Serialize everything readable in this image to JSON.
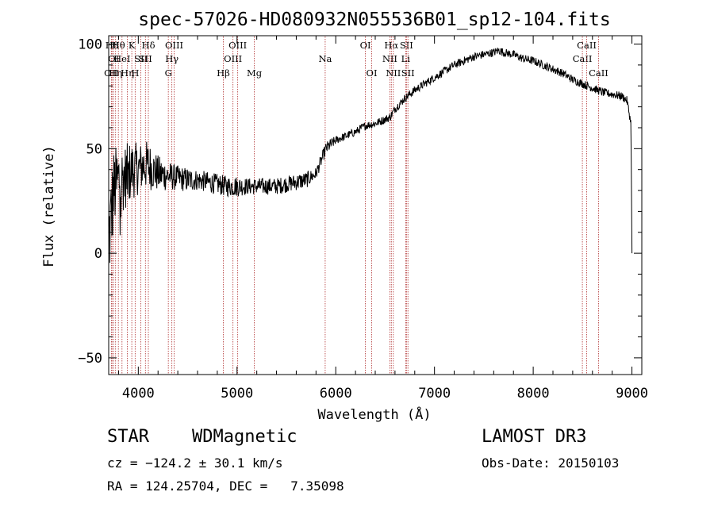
{
  "chart_data": {
    "type": "line",
    "title": "spec-57026-HD080932N055536B01_sp12-104.fits",
    "xlabel": "Wavelength (Å)",
    "ylabel": "Flux (relative)",
    "xlim": [
      3700,
      9100
    ],
    "ylim": [
      -58,
      104
    ],
    "xticks": [
      {
        "value": 4000,
        "label": "4000"
      },
      {
        "value": 5000,
        "label": "5000"
      },
      {
        "value": 6000,
        "label": "6000"
      },
      {
        "value": 7000,
        "label": "7000"
      },
      {
        "value": 8000,
        "label": "8000"
      },
      {
        "value": 9000,
        "label": "9000"
      }
    ],
    "yticks": [
      {
        "value": -50,
        "label": "−50"
      },
      {
        "value": 0,
        "label": "0"
      },
      {
        "value": 50,
        "label": "50"
      },
      {
        "value": 100,
        "label": "100"
      }
    ],
    "grid": false,
    "line_color": "#000000",
    "marker_color": "#b03030",
    "spectrum": {
      "x": [
        3700,
        3750,
        3800,
        3850,
        3900,
        3950,
        4000,
        4050,
        4100,
        4150,
        4200,
        4300,
        4400,
        4500,
        4600,
        4700,
        4800,
        4900,
        5000,
        5100,
        5200,
        5300,
        5400,
        5500,
        5600,
        5700,
        5800,
        5850,
        5900,
        5950,
        6000,
        6100,
        6200,
        6300,
        6400,
        6500,
        6550,
        6600,
        6700,
        6800,
        6900,
        7000,
        7100,
        7200,
        7300,
        7400,
        7500,
        7600,
        7650,
        7700,
        7800,
        7900,
        8000,
        8100,
        8200,
        8300,
        8400,
        8500,
        8600,
        8700,
        8800,
        8900,
        8950,
        8990,
        9000
      ],
      "y": [
        5,
        30,
        35,
        36,
        38,
        40,
        40,
        42,
        42,
        40,
        38,
        37,
        36,
        35,
        35,
        34,
        33,
        32,
        32,
        32,
        32,
        32,
        32,
        33,
        34,
        35,
        38,
        44,
        50,
        52,
        54,
        56,
        58,
        61,
        62,
        64,
        65,
        69,
        74,
        78,
        81,
        84,
        87,
        90,
        92,
        94,
        95,
        96,
        97,
        96,
        95,
        93,
        92,
        90,
        88,
        86,
        83,
        81,
        79,
        77,
        76,
        75,
        73,
        62,
        0
      ]
    },
    "spike_amplitude": [
      25,
      20,
      18,
      16,
      15,
      14,
      12,
      12,
      12,
      10,
      9,
      7,
      6,
      6,
      5,
      5,
      5,
      5,
      5,
      4,
      4,
      4,
      4,
      4,
      4,
      4,
      3,
      3,
      3,
      3,
      2,
      2,
      2,
      2,
      2,
      2,
      2,
      2,
      2,
      2,
      2,
      2,
      2,
      2,
      2,
      2,
      2,
      2,
      2,
      2,
      2,
      2,
      2,
      2,
      2,
      2,
      2,
      2,
      2,
      2,
      2,
      2,
      2,
      2,
      0
    ],
    "markers": [
      {
        "x": 3727,
        "label": "OII",
        "row": 2
      },
      {
        "x": 3734,
        "label": "Hθ",
        "row": 0
      },
      {
        "x": 3750,
        "label": "OI",
        "row": 1
      },
      {
        "x": 3770,
        "label": "Hη",
        "row": 2
      },
      {
        "x": 3798,
        "label": "Hθ",
        "row": 0
      },
      {
        "x": 3835,
        "label": "HeI",
        "row": 1
      },
      {
        "x": 3889,
        "label": "Hη",
        "row": 2
      },
      {
        "x": 3934,
        "label": "K",
        "row": 0
      },
      {
        "x": 3968,
        "label": "H",
        "row": 2
      },
      {
        "x": 4026,
        "label": "SII",
        "row": 1
      },
      {
        "x": 4072,
        "label": "SII",
        "row": 1
      },
      {
        "x": 4102,
        "label": "Hδ",
        "row": 0
      },
      {
        "x": 4304,
        "label": "G",
        "row": 2
      },
      {
        "x": 4340,
        "label": "Hγ",
        "row": 1
      },
      {
        "x": 4363,
        "label": "OIII",
        "row": 0
      },
      {
        "x": 4861,
        "label": "Hβ",
        "row": 2
      },
      {
        "x": 4959,
        "label": "OIII",
        "row": 1
      },
      {
        "x": 5007,
        "label": "OIII",
        "row": 0
      },
      {
        "x": 5175,
        "label": "Mg",
        "row": 2
      },
      {
        "x": 5893,
        "label": "Na",
        "row": 1
      },
      {
        "x": 6300,
        "label": "OI",
        "row": 0
      },
      {
        "x": 6364,
        "label": "OI",
        "row": 2
      },
      {
        "x": 6548,
        "label": "NII",
        "row": 1
      },
      {
        "x": 6563,
        "label": "Hα",
        "row": 0
      },
      {
        "x": 6583,
        "label": "NII",
        "row": 2
      },
      {
        "x": 6708,
        "label": "Li",
        "row": 1
      },
      {
        "x": 6716,
        "label": "SII",
        "row": 0
      },
      {
        "x": 6731,
        "label": "SII",
        "row": 2
      },
      {
        "x": 8498,
        "label": "CaII",
        "row": 1
      },
      {
        "x": 8542,
        "label": "CaII",
        "row": 0
      },
      {
        "x": 8662,
        "label": "CaII",
        "row": 2
      }
    ]
  },
  "info": {
    "class": "STAR",
    "subclass": "WDMagnetic",
    "survey": "LAMOST DR3",
    "cz": "cz = −124.2 ± 30.1 km/s",
    "obs_date": "Obs-Date: 20150103",
    "radec": "RA = 124.25704, DEC =   7.35098"
  }
}
